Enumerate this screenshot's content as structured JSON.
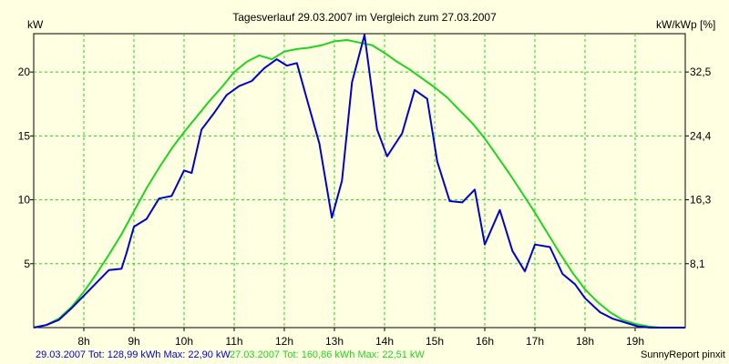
{
  "chart_data": {
    "type": "line",
    "title": "Tagesverlauf 29.03.2007 im Vergleich zum 27.03.2007",
    "ylabel_left": "kW",
    "ylabel_right": "kW/kWp [%]",
    "x_unit": "hour",
    "xlim": [
      7.0,
      20.0
    ],
    "ylim": [
      0,
      23
    ],
    "x_ticks": [
      8,
      9,
      10,
      11,
      12,
      13,
      14,
      15,
      16,
      17,
      18,
      19
    ],
    "x_tick_labels": [
      "8h",
      "9h",
      "10h",
      "11h",
      "12h",
      "13h",
      "14h",
      "15h",
      "16h",
      "17h",
      "18h",
      "19h"
    ],
    "y_ticks_left": [
      5,
      10,
      15,
      20
    ],
    "y_tick_labels_left": [
      "5",
      "10",
      "15",
      "20"
    ],
    "y_ticks_right_pos": [
      5,
      10,
      15,
      20
    ],
    "y_tick_labels_right": [
      "8,1",
      "16,3",
      "24,4",
      "32,5"
    ],
    "grid": true,
    "series": [
      {
        "color": "#0000d0",
        "x": [
          7.0,
          7.25,
          7.5,
          7.75,
          8.0,
          8.25,
          8.5,
          8.75,
          8.85,
          9.0,
          9.25,
          9.5,
          9.75,
          10.0,
          10.15,
          10.35,
          10.6,
          10.85,
          11.1,
          11.35,
          11.6,
          11.85,
          12.05,
          12.25,
          12.45,
          12.7,
          12.95,
          13.15,
          13.35,
          13.6,
          13.85,
          14.05,
          14.35,
          14.6,
          14.85,
          15.05,
          15.3,
          15.55,
          15.8,
          16.0,
          16.3,
          16.55,
          16.8,
          17.0,
          17.3,
          17.55,
          17.8,
          18.0,
          18.3,
          18.55,
          18.8,
          19.05,
          19.3,
          19.6,
          19.85,
          20.0
        ],
        "y": [
          0.0,
          0.2,
          0.6,
          1.5,
          2.5,
          3.5,
          4.5,
          4.6,
          5.8,
          7.9,
          8.5,
          10.1,
          10.3,
          12.3,
          12.1,
          15.5,
          16.8,
          18.2,
          18.9,
          19.3,
          20.3,
          21.0,
          20.5,
          20.7,
          17.9,
          14.4,
          8.6,
          11.5,
          19.2,
          22.9,
          15.5,
          13.4,
          15.2,
          18.6,
          17.9,
          13.0,
          9.9,
          9.8,
          10.8,
          6.5,
          9.2,
          6.0,
          4.4,
          6.5,
          6.3,
          4.2,
          3.4,
          2.3,
          1.2,
          0.7,
          0.4,
          0.1,
          0.0,
          0.0,
          0.0,
          0.0
        ]
      },
      {
        "color": "#1ed41e",
        "x": [
          7.0,
          7.25,
          7.5,
          7.75,
          8.0,
          8.25,
          8.5,
          8.75,
          9.0,
          9.25,
          9.5,
          9.75,
          10.0,
          10.25,
          10.5,
          10.75,
          11.0,
          11.25,
          11.5,
          11.75,
          12.0,
          12.25,
          12.5,
          12.75,
          13.0,
          13.25,
          13.5,
          13.75,
          14.0,
          14.25,
          14.5,
          14.75,
          15.0,
          15.25,
          15.5,
          15.75,
          16.0,
          16.25,
          16.5,
          16.75,
          17.0,
          17.25,
          17.5,
          17.75,
          18.0,
          18.25,
          18.5,
          18.75,
          19.0,
          19.25,
          19.5,
          19.75,
          20.0
        ],
        "y": [
          0.0,
          0.2,
          0.7,
          1.6,
          2.8,
          4.2,
          5.7,
          7.3,
          9.1,
          10.9,
          12.5,
          14.0,
          15.3,
          16.5,
          17.7,
          18.8,
          20.0,
          20.8,
          21.3,
          21.0,
          21.6,
          21.8,
          21.9,
          22.1,
          22.4,
          22.5,
          22.3,
          22.1,
          21.5,
          20.8,
          20.2,
          19.5,
          18.8,
          18.0,
          17.0,
          16.0,
          14.8,
          13.4,
          12.0,
          10.5,
          9.0,
          7.4,
          5.8,
          4.3,
          3.0,
          2.0,
          1.2,
          0.6,
          0.3,
          0.1,
          0.0,
          0.0,
          0.0
        ]
      }
    ]
  },
  "footer": {
    "series1_text": "29.03.2007 Tot: 128,99 kWh Max: 22,90 kW",
    "series2_text": "27.03.2007 Tot: 160,86 kWh Max: 22,51 kW",
    "brand": "SunnyReport pinxit"
  }
}
